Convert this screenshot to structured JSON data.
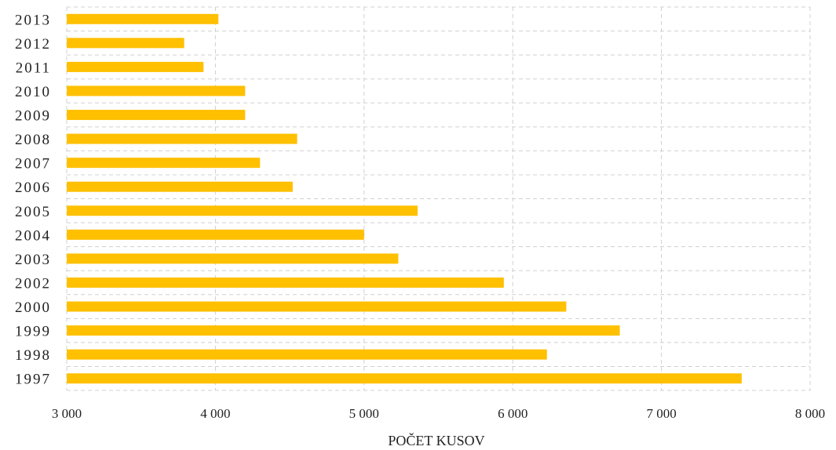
{
  "chart_data": {
    "type": "bar",
    "orientation": "horizontal",
    "title": "",
    "xlabel": "POČET KUSOV",
    "ylabel": "",
    "categories": [
      "1997",
      "1998",
      "1999",
      "2000",
      "2002",
      "2003",
      "2004",
      "2005",
      "2006",
      "2007",
      "2008",
      "2009",
      "2010",
      "2011",
      "2012",
      "2013"
    ],
    "values": [
      7540,
      6230,
      6720,
      6360,
      5940,
      5230,
      5000,
      5360,
      4520,
      4300,
      4550,
      4200,
      4200,
      3920,
      3790,
      4020
    ],
    "xlim": [
      3000,
      8000
    ],
    "xticks": [
      3000,
      4000,
      5000,
      6000,
      7000,
      8000
    ],
    "xtick_labels": [
      "3 000",
      "4 000",
      "5 000",
      "6 000",
      "7 000",
      "8 000"
    ],
    "grid": true,
    "grid_style": "dashed",
    "legend": "none",
    "bar_color": "#FFC000",
    "grid_color": "#D0D0D0"
  }
}
